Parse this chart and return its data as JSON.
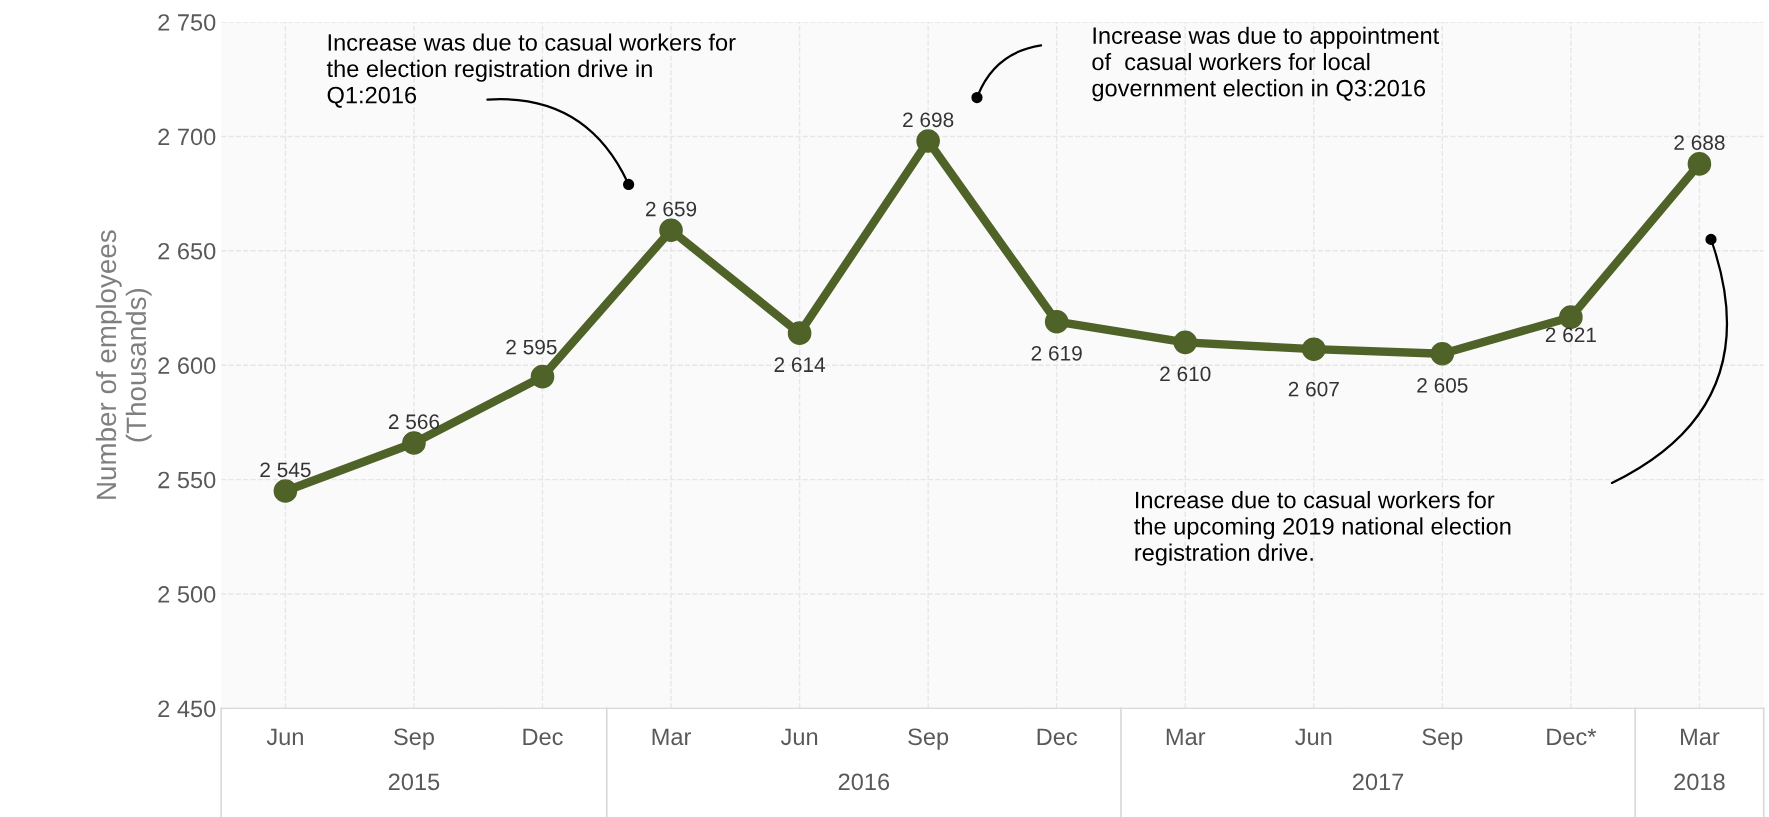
{
  "chart_data": {
    "type": "line",
    "ylabel": "Number of employees\n(Thousands)",
    "categories": [
      "Jun",
      "Sep",
      "Dec",
      "Mar",
      "Jun",
      "Sep",
      "Dec",
      "Mar",
      "Jun",
      "Sep",
      "Dec*",
      "Mar"
    ],
    "series": [
      {
        "color": "#4f6228",
        "values": [
          2545,
          2566,
          2595,
          2659,
          2614,
          2698,
          2619,
          2610,
          2607,
          2605,
          2621,
          2688
        ]
      }
    ],
    "ylim": [
      2450,
      2750
    ],
    "yticks": [
      {
        "value": 2450,
        "label": "2 450"
      },
      {
        "value": 2500,
        "label": "2 500"
      },
      {
        "value": 2550,
        "label": "2 550"
      },
      {
        "value": 2600,
        "label": "2 600"
      },
      {
        "value": 2650,
        "label": "2 650"
      },
      {
        "value": 2700,
        "label": "2 700"
      },
      {
        "value": 2750,
        "label": "2 750"
      }
    ],
    "grid": true,
    "marker": "circle",
    "line_style": "solid",
    "data_labels": true,
    "annotations": [
      "2015",
      "2016",
      "2017",
      "2018",
      "Increase was due to casual workers for\nthe election registration drive in\nQ1:2016",
      "Increase was due to appointment\nof  casual workers for local\ngovernment election in Q3:2016",
      "Increase due to casual workers for\nthe upcoming 2019 national election\nregistration drive."
    ]
  }
}
